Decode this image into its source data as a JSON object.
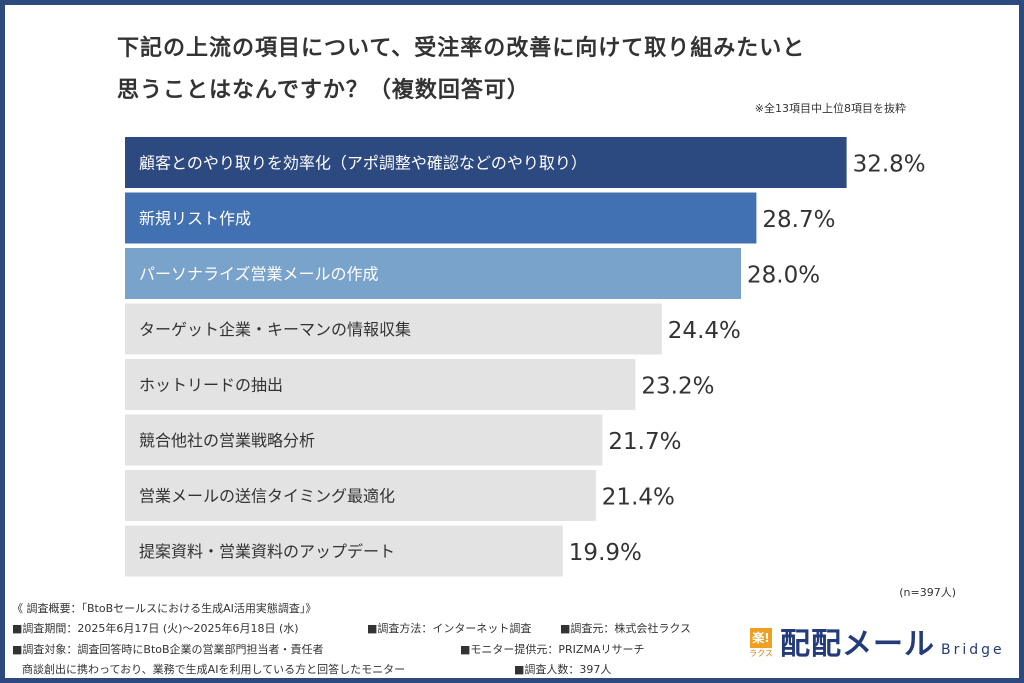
{
  "header": {
    "title_line1": "下記の上流の項目について、受注率の改善に向けて取り組みたいと",
    "title_line2": "思うことはなんですか？（複数回答可）",
    "note": "※全13項目中上位8項目を抜粋"
  },
  "chart_data": {
    "type": "bar",
    "orientation": "horizontal",
    "title": "下記の上流の項目について、受注率の改善に向けて取り組みたいと思うことはなんですか？（複数回答可）",
    "categories": [
      "顧客とのやり取りを効率化（アポ調整や確認などのやり取り）",
      "新規リスト作成",
      "パーソナライズ営業メールの作成",
      "ターゲット企業・キーマンの情報収集",
      "ホットリードの抽出",
      "競合他社の営業戦略分析",
      "営業メールの送信タイミング最適化",
      "提案資料・営業資料のアップデート"
    ],
    "values": [
      32.8,
      28.7,
      28.0,
      24.4,
      23.2,
      21.7,
      21.4,
      19.9
    ],
    "value_labels": [
      "32.8%",
      "28.7%",
      "28.0%",
      "24.4%",
      "23.2%",
      "21.7%",
      "21.4%",
      "19.9%"
    ],
    "unit": "%",
    "xlim": [
      0,
      40
    ],
    "colors": [
      "#2d4a80",
      "#4171b0",
      "#7aa3cc",
      "#e3e3e3",
      "#e3e3e3",
      "#e3e3e3",
      "#e3e3e3",
      "#e3e3e3"
    ],
    "label_colors": [
      "#ffffff",
      "#ffffff",
      "#ffffff",
      "#333333",
      "#333333",
      "#333333",
      "#333333",
      "#333333"
    ]
  },
  "sample": "(n=397人)",
  "footer": {
    "line1": "《 調査概要：「BtoBセールスにおける生成AI活用実態調査」》",
    "period": "■調査期間：2025年6月17日 (火)〜2025年6月18日 (水)",
    "method": "■調査方法：インターネット調査",
    "source": "■調査元：株式会社ラクス",
    "target": "■調査対象：調査回答時にBtoB企業の営業部門担当者・責任者",
    "monitor": "■モニター提供元：PRIZMAリサーチ",
    "target2": "商談創出に携わっており、業務で生成AIを利用している方と回答したモニター",
    "count": "■調査人数：397人"
  },
  "logo": {
    "mark": "楽!",
    "mark_sub": "ラクス",
    "name": "配配メール",
    "sub": "Bridge"
  }
}
